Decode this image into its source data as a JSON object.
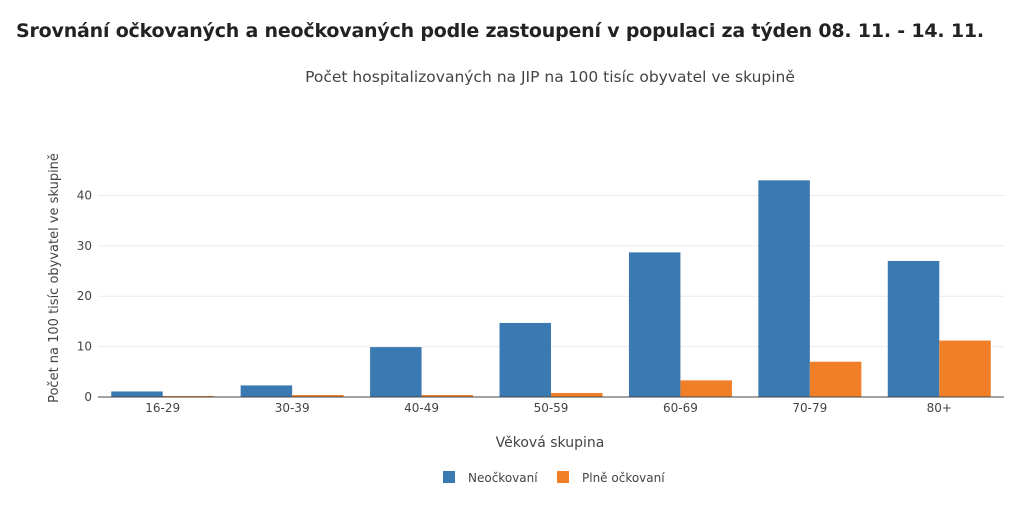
{
  "page": {
    "heading": "Srovnání očkovaných a neočkovaných podle zastoupení v populaci za týden 08. 11. - 14. 11."
  },
  "chart_data": {
    "type": "bar",
    "title": "Počet hospitalizovaných na JIP na 100 tisíc obyvatel ve skupině",
    "xlabel": "Věková skupina",
    "ylabel": "Počet na 100 tisíc obyvatel ve skupině",
    "categories": [
      "16-29",
      "30-39",
      "40-49",
      "50-59",
      "60-69",
      "70-79",
      "80+"
    ],
    "series": [
      {
        "name": "Neočkovaní",
        "color": "#3a79b2",
        "values": [
          1.1,
          2.3,
          9.9,
          14.7,
          28.7,
          43.0,
          27.0
        ]
      },
      {
        "name": "Plně očkovaní",
        "color": "#f07f28",
        "values": [
          0.2,
          0.4,
          0.4,
          0.8,
          3.3,
          7.0,
          11.2
        ]
      }
    ],
    "ylim": [
      0,
      52
    ],
    "yticks": [
      0,
      10,
      20,
      30,
      40
    ],
    "grid": true,
    "legend": "bottom-center"
  }
}
